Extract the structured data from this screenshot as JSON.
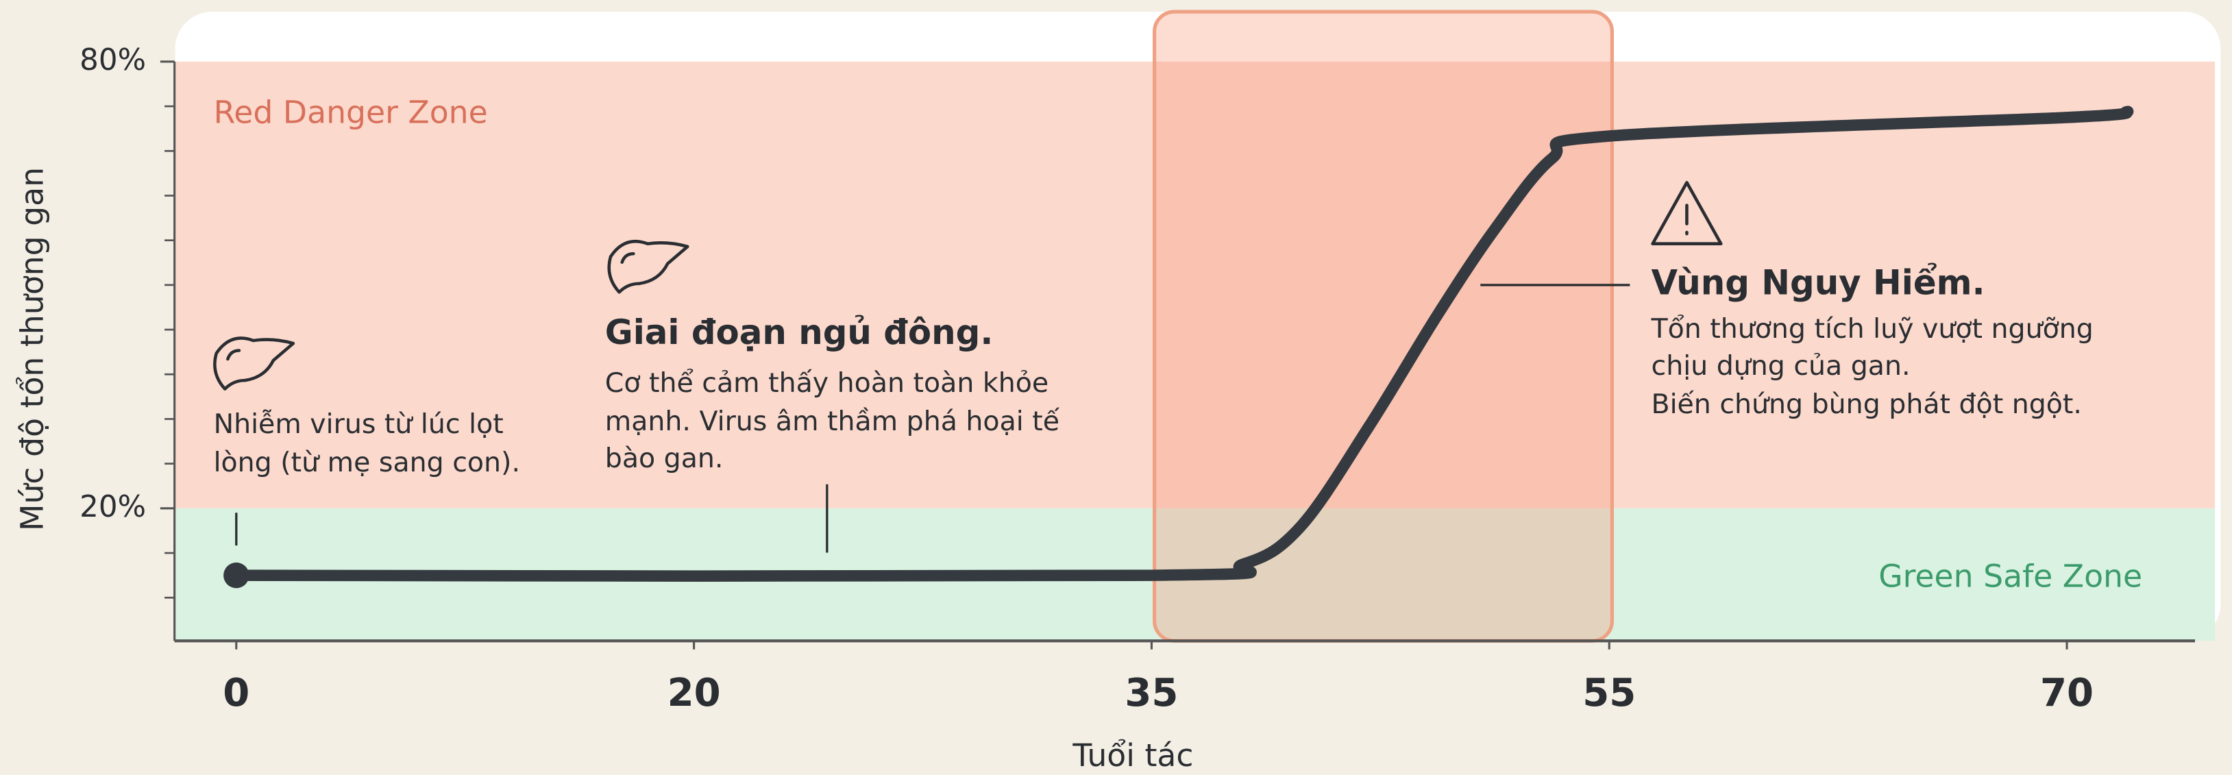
{
  "chart_data": {
    "type": "line",
    "xlabel": "Tuổi tác",
    "ylabel": "Mức độ tổn thương gan",
    "x": [
      0,
      35,
      39,
      41.5,
      44.5,
      47.5,
      50,
      52.5,
      55,
      70,
      72
    ],
    "series": [
      {
        "color": "#353a40",
        "values": [
          11,
          11,
          12.5,
          17.5,
          31,
          46,
          57.5,
          67,
          70,
          72.5,
          73.3
        ]
      }
    ],
    "xlim": [
      -2.7,
      74.2
    ],
    "xticks": [
      0,
      20,
      35,
      55,
      70
    ],
    "ylim": [
      2.2,
      86.7
    ],
    "yticks": [
      {
        "value": 80,
        "label": "80%"
      },
      {
        "value": 20,
        "label": "20%"
      }
    ],
    "yminor_ticks": [
      74,
      68,
      62,
      56,
      50,
      44,
      38,
      32,
      26,
      14,
      8
    ],
    "zones": [
      {
        "name": "Red Danger Zone",
        "range": [
          20,
          80
        ],
        "color": "#fbd9cd",
        "text_color": "#d8705a"
      },
      {
        "name": "Green Safe Zone",
        "range": [
          2.2,
          20
        ],
        "color": "#d9f2e1",
        "text_color": "#3b9b6b"
      }
    ],
    "highlight_x": [
      35,
      55
    ],
    "annotations": [
      {
        "lines": [
          "Nhiễm virus từ lúc lọt",
          "lòng (từ mẹ sang con)."
        ]
      },
      {
        "title": "Giai đoạn ngủ đông.",
        "lines": [
          "Cơ thể cảm thấy hoàn toàn khỏe",
          "mạnh. Virus âm thầm phá hoại tế",
          "bào gan."
        ]
      },
      {
        "title": "Vùng Nguy Hiểm.",
        "lines": [
          "Tổn thương tích luỹ vượt ngưỡng",
          "chịu dựng của gan.",
          "Biến chứng bùng phát đột ngột."
        ]
      }
    ]
  }
}
